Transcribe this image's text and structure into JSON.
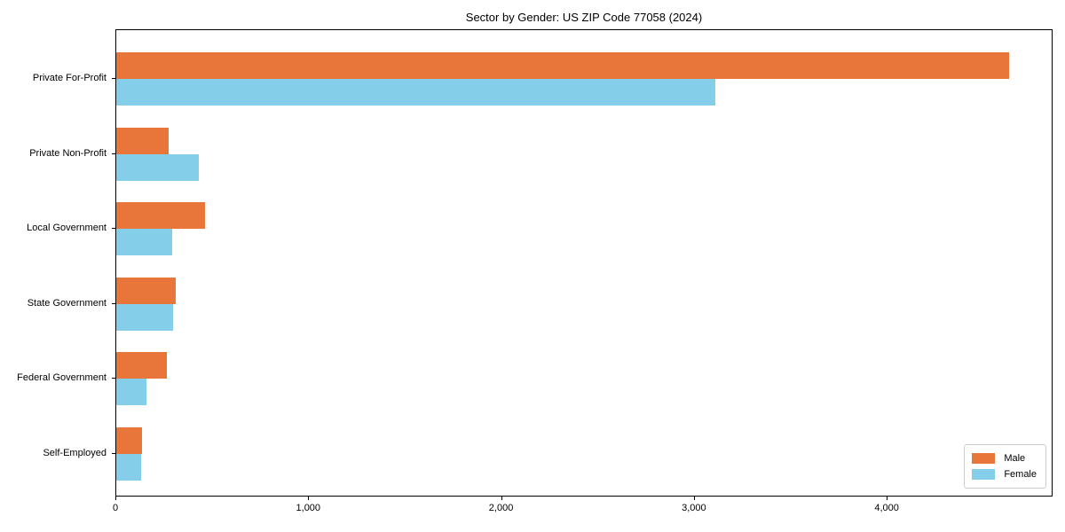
{
  "title": "Sector by Gender: US ZIP Code 77058 (2024)",
  "colors": {
    "male": "#e8763a",
    "female": "#85ceea",
    "axis": "#000000",
    "legend_border": "#cccccc",
    "background": "#ffffff"
  },
  "legend": {
    "male_label": "Male",
    "female_label": "Female"
  },
  "chart_data": {
    "type": "bar",
    "orientation": "horizontal",
    "title": "Sector by Gender: US ZIP Code 77058 (2024)",
    "categories": [
      "Private For-Profit",
      "Private Non-Profit",
      "Local Government",
      "State Government",
      "Federal Government",
      "Self-Employed"
    ],
    "series": [
      {
        "name": "Male",
        "color": "#e8763a",
        "values": [
          4631,
          272,
          459,
          308,
          262,
          134
        ]
      },
      {
        "name": "Female",
        "color": "#85ceea",
        "values": [
          3107,
          428,
          290,
          294,
          157,
          130
        ]
      }
    ],
    "xlabel": "",
    "ylabel": "",
    "xlim": [
      0,
      4860
    ],
    "xticks": [
      0,
      1000,
      2000,
      3000,
      4000
    ],
    "xtick_labels": [
      "0",
      "1,000",
      "2,000",
      "3,000",
      "4,000"
    ],
    "grid": false,
    "legend_position": "lower right"
  }
}
